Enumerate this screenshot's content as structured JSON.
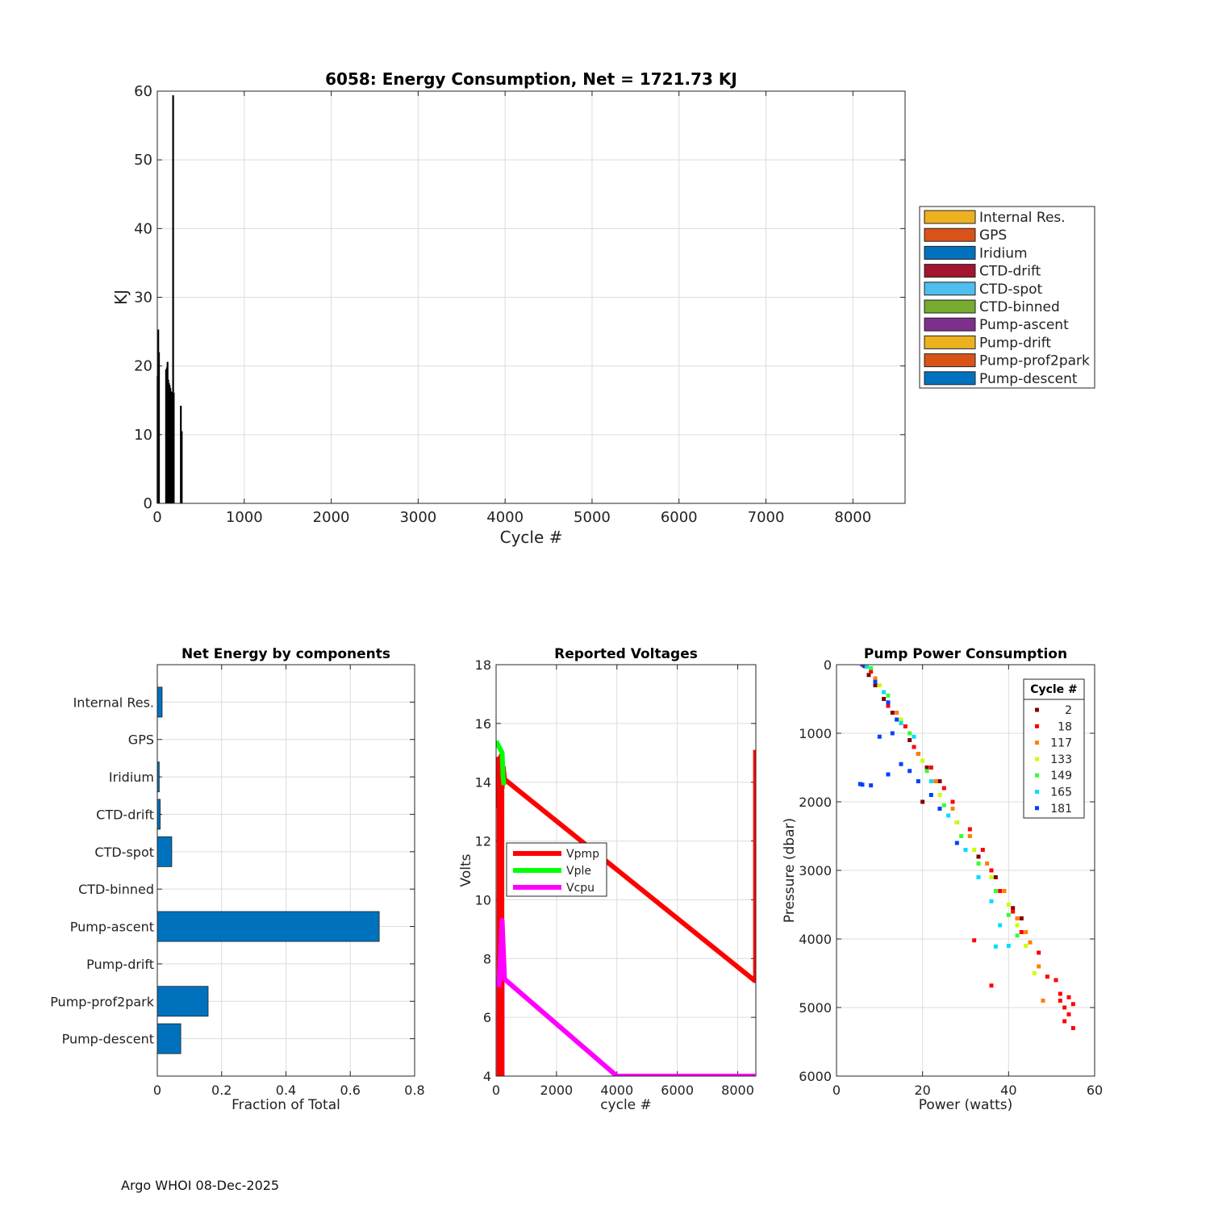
{
  "footer": "Argo WHOI 08-Dec-2025",
  "chart_data": [
    {
      "id": "energy",
      "type": "bar",
      "title": "6058: Energy Consumption,  Net = 1721.73 KJ",
      "xlabel": "Cycle #",
      "ylabel": "KJ",
      "xlim": [
        0,
        8600
      ],
      "ylim": [
        0,
        60
      ],
      "xticks": [
        0,
        1000,
        2000,
        3000,
        4000,
        5000,
        6000,
        7000,
        8000
      ],
      "yticks": [
        0,
        10,
        20,
        30,
        40,
        50,
        60
      ],
      "grid": true,
      "legend_position": "outside-right",
      "legend": [
        {
          "label": "Internal Res.",
          "color": "#EDB120"
        },
        {
          "label": "GPS",
          "color": "#D95319"
        },
        {
          "label": "Iridium",
          "color": "#0072BD"
        },
        {
          "label": "CTD-drift",
          "color": "#A2142F"
        },
        {
          "label": "CTD-spot",
          "color": "#4DBEEE"
        },
        {
          "label": "CTD-binned",
          "color": "#77AC30"
        },
        {
          "label": "Pump-ascent",
          "color": "#7E2F8E"
        },
        {
          "label": "Pump-drift",
          "color": "#EDB120"
        },
        {
          "label": "Pump-prof2park",
          "color": "#D95319"
        },
        {
          "label": "Pump-descent",
          "color": "#0072BD"
        }
      ],
      "bars": [
        [
          2,
          18.5
        ],
        [
          10,
          25.3
        ],
        [
          18,
          22.0
        ],
        [
          100,
          19.5
        ],
        [
          110,
          19.8
        ],
        [
          117,
          20.6
        ],
        [
          125,
          18.0
        ],
        [
          133,
          17.5
        ],
        [
          141,
          17.2
        ],
        [
          149,
          16.8
        ],
        [
          157,
          16.3
        ],
        [
          165,
          16.2
        ],
        [
          170,
          16.0
        ],
        [
          181,
          59.4
        ],
        [
          188,
          16.1
        ],
        [
          270,
          14.2
        ],
        [
          280,
          10.5
        ]
      ]
    },
    {
      "id": "components",
      "type": "barh",
      "title": "Net Energy by components",
      "xlabel": "Fraction of Total",
      "xlim": [
        0,
        0.8
      ],
      "xticks": [
        0,
        0.2,
        0.4,
        0.6,
        0.8
      ],
      "grid": true,
      "bar_color": "#0072BD",
      "categories": [
        "Internal Res.",
        "GPS",
        "Iridium",
        "CTD-drift",
        "CTD-spot",
        "CTD-binned",
        "Pump-ascent",
        "Pump-drift",
        "Pump-prof2park",
        "Pump-descent"
      ],
      "values": [
        0.015,
        0.0,
        0.006,
        0.009,
        0.045,
        0.0,
        0.69,
        0.0,
        0.158,
        0.073
      ]
    },
    {
      "id": "voltages",
      "type": "line",
      "title": "Reported Voltages",
      "xlabel": "cycle #",
      "ylabel": "Volts",
      "xlim": [
        0,
        8600
      ],
      "ylim": [
        4,
        18
      ],
      "xticks": [
        0,
        2000,
        4000,
        6000,
        8000
      ],
      "yticks": [
        4,
        6,
        8,
        10,
        12,
        14,
        16,
        18
      ],
      "grid": true,
      "legend_position": "middle-left",
      "series": [
        {
          "name": "Vpmp",
          "color": "#FF0000",
          "x": [
            0,
            40,
            80,
            120,
            160,
            200,
            240,
            280,
            8560,
            8590,
            8590
          ],
          "y": [
            14.6,
            13.2,
            14.8,
            12.5,
            14.9,
            13.8,
            14.5,
            14.1,
            7.25,
            7.3,
            15.1
          ],
          "vspan": [
            4.0,
            14.8
          ],
          "vspan_x": [
            20,
            270
          ]
        },
        {
          "name": "Vple",
          "color": "#00FF00",
          "x": [
            0,
            50,
            100,
            150,
            200,
            230,
            260
          ],
          "y": [
            15.4,
            15.3,
            15.2,
            15.1,
            15.0,
            14.2,
            13.9
          ]
        },
        {
          "name": "Vcpu",
          "color": "#FF00FF",
          "x": [
            0,
            100,
            200,
            280,
            4000,
            8580
          ],
          "y": [
            7.2,
            7.1,
            9.3,
            7.3,
            4.0,
            4.0
          ],
          "vspan": [
            4.0,
            7.4
          ],
          "vspan_x": [
            20,
            280
          ]
        }
      ]
    },
    {
      "id": "pump",
      "type": "scatter",
      "title": "Pump Power Consumption",
      "xlabel": "Power (watts)",
      "ylabel": "Pressure (dbar)",
      "xlim": [
        0,
        60
      ],
      "ylim": [
        0,
        6000
      ],
      "y_reversed": true,
      "xticks": [
        0,
        20,
        40,
        60
      ],
      "yticks": [
        0,
        1000,
        2000,
        3000,
        4000,
        5000,
        6000
      ],
      "grid": true,
      "legend_title": "Cycle #",
      "legend_position": "top-right",
      "series": [
        {
          "name": "2",
          "color": "#800000",
          "points": [
            [
              6.5,
              20
            ],
            [
              7.5,
              150
            ],
            [
              9,
              300
            ],
            [
              11,
              500
            ],
            [
              13,
              700
            ],
            [
              15,
              850
            ],
            [
              17,
              1100
            ],
            [
              19,
              1300
            ],
            [
              21,
              1500
            ],
            [
              24,
              1700
            ],
            [
              20,
              2000
            ],
            [
              28,
              2300
            ],
            [
              33,
              2800
            ],
            [
              37,
              3100
            ],
            [
              41,
              3550
            ],
            [
              43,
              3700
            ]
          ]
        },
        {
          "name": "18",
          "color": "#FF0000",
          "points": [
            [
              8,
              100
            ],
            [
              12,
              600
            ],
            [
              16,
              900
            ],
            [
              18,
              1200
            ],
            [
              22,
              1500
            ],
            [
              25,
              1800
            ],
            [
              27,
              2000
            ],
            [
              31,
              2400
            ],
            [
              34,
              2700
            ],
            [
              36,
              3000
            ],
            [
              38,
              3300
            ],
            [
              41,
              3600
            ],
            [
              43,
              3900
            ],
            [
              32,
              4020
            ],
            [
              36,
              4680
            ],
            [
              47,
              4200
            ],
            [
              49,
              4550
            ],
            [
              51,
              4600
            ],
            [
              52,
              4900
            ],
            [
              53,
              5000
            ],
            [
              54,
              5100
            ],
            [
              55,
              5300
            ],
            [
              54,
              4850
            ],
            [
              55,
              4950
            ],
            [
              52,
              4800
            ],
            [
              53,
              5200
            ]
          ]
        },
        {
          "name": "117",
          "color": "#FF8000",
          "points": [
            [
              9,
              200
            ],
            [
              14,
              700
            ],
            [
              19,
              1300
            ],
            [
              23,
              1700
            ],
            [
              27,
              2100
            ],
            [
              31,
              2500
            ],
            [
              35,
              2900
            ],
            [
              39,
              3300
            ],
            [
              42,
              3700
            ],
            [
              44,
              3900
            ],
            [
              45,
              4050
            ],
            [
              47,
              4400
            ],
            [
              48,
              4900
            ]
          ]
        },
        {
          "name": "133",
          "color": "#CCFF00",
          "points": [
            [
              10,
              300
            ],
            [
              15,
              800
            ],
            [
              20,
              1400
            ],
            [
              24,
              1900
            ],
            [
              28,
              2300
            ],
            [
              32,
              2700
            ],
            [
              36,
              3100
            ],
            [
              40,
              3500
            ],
            [
              42,
              3800
            ],
            [
              44,
              4100
            ],
            [
              46,
              4500
            ]
          ]
        },
        {
          "name": "149",
          "color": "#33FF33",
          "points": [
            [
              8,
              50
            ],
            [
              12,
              450
            ],
            [
              17,
              1000
            ],
            [
              21,
              1550
            ],
            [
              25,
              2050
            ],
            [
              29,
              2500
            ],
            [
              33,
              2900
            ],
            [
              37,
              3300
            ],
            [
              40,
              3650
            ],
            [
              42,
              3950
            ]
          ]
        },
        {
          "name": "165",
          "color": "#00DDFF",
          "points": [
            [
              7,
              30
            ],
            [
              11,
              400
            ],
            [
              15,
              850
            ],
            [
              18,
              1050
            ],
            [
              22,
              1700
            ],
            [
              26,
              2200
            ],
            [
              30,
              2700
            ],
            [
              33,
              3100
            ],
            [
              36,
              3450
            ],
            [
              38,
              3800
            ],
            [
              40,
              4100
            ],
            [
              37,
              4110
            ]
          ]
        },
        {
          "name": "181",
          "color": "#0040FF",
          "points": [
            [
              6,
              0
            ],
            [
              9,
              250
            ],
            [
              12,
              550
            ],
            [
              14,
              800
            ],
            [
              13,
              1000
            ],
            [
              10,
              1050
            ],
            [
              12,
              1600
            ],
            [
              15,
              1450
            ],
            [
              17,
              1550
            ],
            [
              19,
              1700
            ],
            [
              22,
              1900
            ],
            [
              24,
              2100
            ],
            [
              28,
              2600
            ],
            [
              6,
              1750
            ],
            [
              8,
              1760
            ],
            [
              5.5,
              1740
            ]
          ]
        }
      ]
    }
  ]
}
